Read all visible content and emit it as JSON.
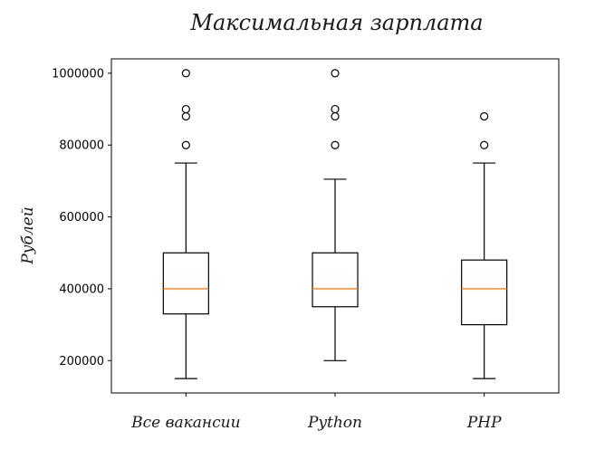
{
  "chart_data": {
    "type": "box",
    "title": "Максимальная зарплата",
    "ylabel": "Рублей",
    "xlabel": "",
    "ylim": [
      110000,
      1040000
    ],
    "yticks": [
      200000,
      400000,
      600000,
      800000,
      1000000
    ],
    "ytick_labels": [
      "200000",
      "400000",
      "600000",
      "800000",
      "1000000"
    ],
    "grid": false,
    "median_color": "#ff7f0e",
    "box_color": "#000000",
    "categories": [
      "Все вакансии",
      "Python",
      "PHP"
    ],
    "boxes": [
      {
        "category": "Все вакансии",
        "whisker_low": 150000,
        "q1": 330000,
        "median": 400000,
        "q3": 500000,
        "whisker_high": 750000,
        "outliers": [
          800000,
          880000,
          900000,
          1000000
        ]
      },
      {
        "category": "Python",
        "whisker_low": 200000,
        "q1": 350000,
        "median": 400000,
        "q3": 500000,
        "whisker_high": 705000,
        "outliers": [
          800000,
          880000,
          900000,
          1000000
        ]
      },
      {
        "category": "PHP",
        "whisker_low": 150000,
        "q1": 300000,
        "median": 400000,
        "q3": 480000,
        "whisker_high": 750000,
        "outliers": [
          800000,
          880000
        ]
      }
    ]
  }
}
